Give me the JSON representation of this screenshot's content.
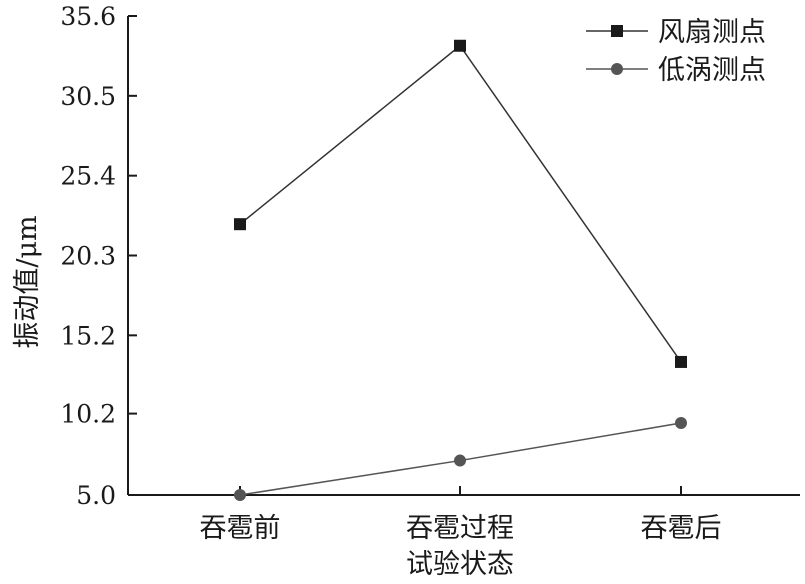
{
  "chart_data": {
    "type": "line",
    "categories": [
      [
        "吞雹前"
      ],
      [
        "吞雹过程",
        "试验状态"
      ],
      [
        "吞雹后"
      ]
    ],
    "ylabel": "振动值/μm",
    "xlabel": "",
    "ylim": [
      5.0,
      35.6
    ],
    "yticks": [
      "5.0",
      "10.2",
      "15.2",
      "20.3",
      "25.4",
      "30.5",
      "35.6"
    ],
    "ytick_values": [
      5.0,
      10.2,
      15.2,
      20.3,
      25.4,
      30.5,
      35.6
    ],
    "grid": false,
    "legend_position": "top-right",
    "series": [
      {
        "name": "风扇测点",
        "marker": "square",
        "color": "#1a1a1a",
        "line_color": "#333333",
        "values": [
          22.3,
          33.7,
          13.5
        ]
      },
      {
        "name": "低涡测点",
        "marker": "circle",
        "color": "#555555",
        "line_color": "#555555",
        "values": [
          5.0,
          7.2,
          9.6
        ]
      }
    ]
  }
}
